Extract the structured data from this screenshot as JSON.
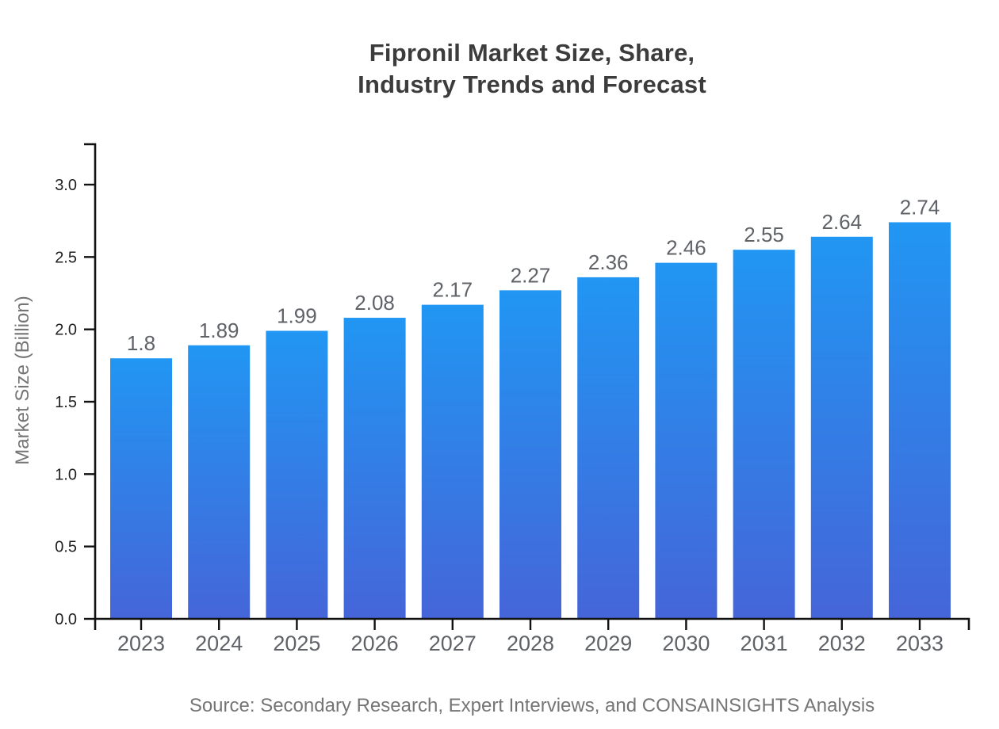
{
  "header": {
    "title_line1": "Fipronil Market Size, Share,",
    "title_line2": "Industry Trends and Forecast"
  },
  "footer": {
    "source": "Source: Secondary Research, Expert Interviews, and CONSAINSIGHTS Analysis"
  },
  "chart_data": {
    "type": "bar",
    "title": "Fipronil Market Size, Share, Industry Trends and Forecast",
    "categories": [
      "2023",
      "2024",
      "2025",
      "2026",
      "2027",
      "2028",
      "2029",
      "2030",
      "2031",
      "2032",
      "2033"
    ],
    "values": [
      1.8,
      1.89,
      1.99,
      2.08,
      2.17,
      2.27,
      2.36,
      2.46,
      2.55,
      2.64,
      2.74
    ],
    "bar_labels": [
      "1.8",
      "1.89",
      "1.99",
      "2.08",
      "2.17",
      "2.27",
      "2.36",
      "2.46",
      "2.55",
      "2.64",
      "2.74"
    ],
    "xlabel": "",
    "ylabel": "Market Size (Billion)",
    "ylim": [
      0,
      3.2
    ],
    "ytick_values": [
      0,
      0.5,
      1,
      1.5,
      2,
      2.5,
      3
    ],
    "ytick_labels": [
      "0.0",
      "0.5",
      "1.0",
      "1.5",
      "2.0",
      "2.5",
      "3.0"
    ],
    "grid": false,
    "legend": null,
    "colors": {
      "bar_gradient_top": "#2196f3",
      "bar_gradient_bottom": "#4565d8",
      "axis": "#111111",
      "tick_label": "#1f1f1f",
      "category_label": "#5f6368",
      "value_label": "#5f6368",
      "title": "#3c3c3c",
      "muted_text": "#757575"
    }
  }
}
